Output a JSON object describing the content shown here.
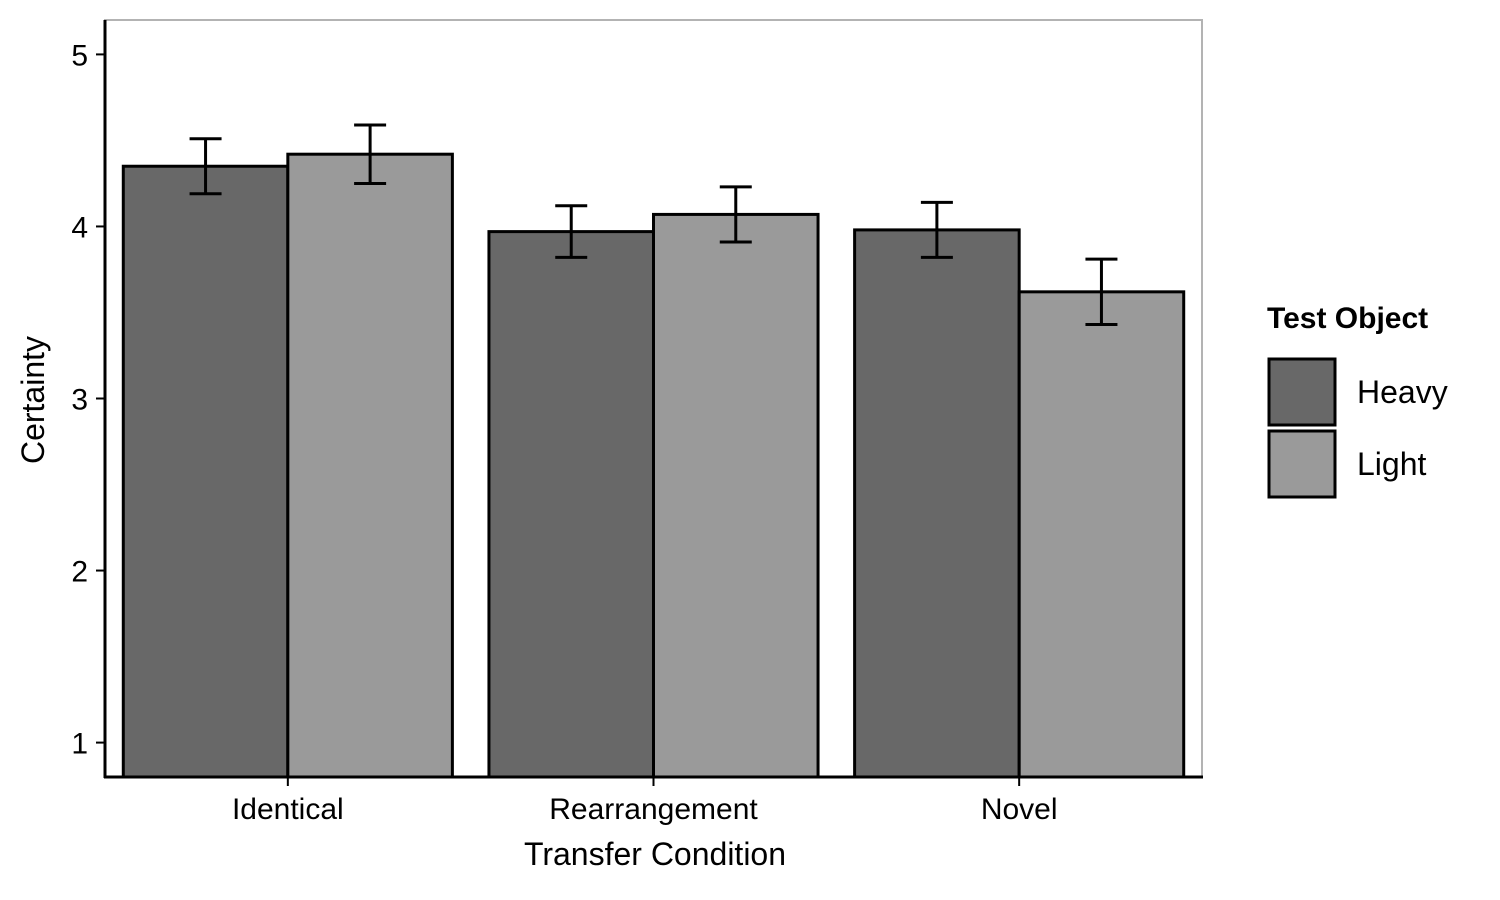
{
  "chart_data": {
    "type": "bar",
    "title": "",
    "xlabel": "Transfer Condition",
    "ylabel": "Certainty",
    "categories": [
      "Identical",
      "Rearrangement",
      "Novel"
    ],
    "yticks": [
      "1",
      "2",
      "3",
      "4",
      "5"
    ],
    "ylim": [
      0.8,
      5.2
    ],
    "baseline": 0.8,
    "grid": false,
    "legend_title": "Test Object",
    "legend_position": "right",
    "series": [
      {
        "name": "Heavy",
        "color": "#686868",
        "values": [
          4.35,
          3.97,
          3.98
        ],
        "error": [
          0.16,
          0.15,
          0.16
        ]
      },
      {
        "name": "Light",
        "color": "#9a9a9a",
        "values": [
          4.42,
          4.07,
          3.62
        ],
        "error": [
          0.17,
          0.16,
          0.19
        ]
      }
    ]
  }
}
